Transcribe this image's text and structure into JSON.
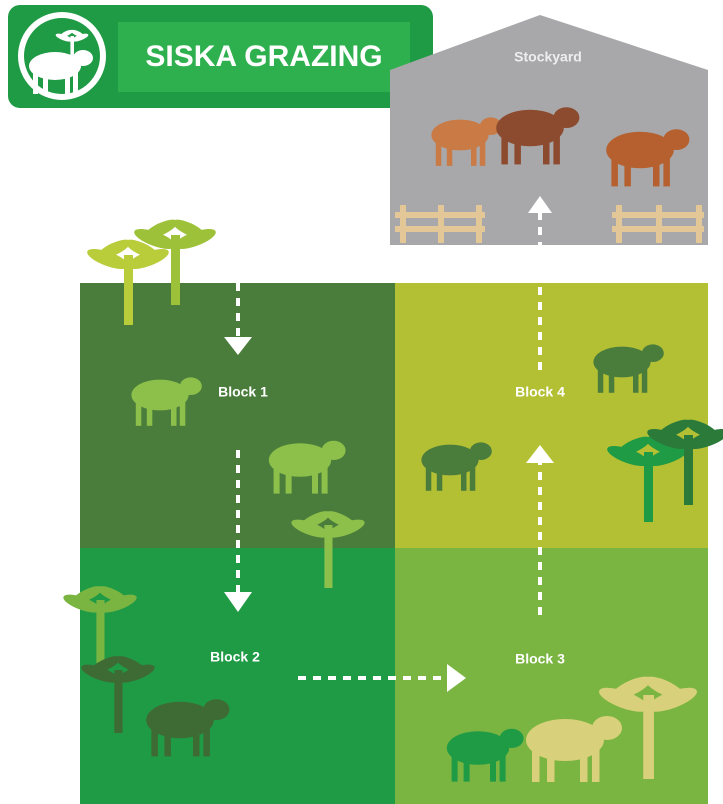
{
  "header": {
    "title": "SISKA GRAZING"
  },
  "stockyard": {
    "label": "Stockyard"
  },
  "blocks": [
    {
      "label": "Block 1"
    },
    {
      "label": "Block 2"
    },
    {
      "label": "Block 3"
    },
    {
      "label": "Block 4"
    }
  ]
}
